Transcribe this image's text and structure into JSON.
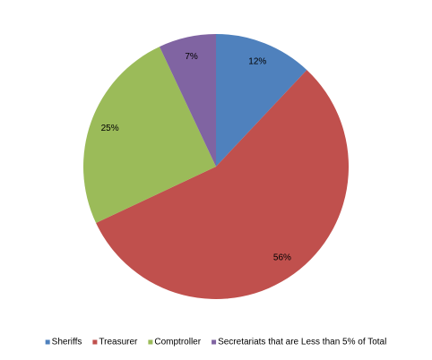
{
  "chart_data": {
    "type": "pie",
    "categories": [
      "Sheriffs",
      "Treasurer",
      "Comptroller",
      "Secretariats that are Less than 5% of Total"
    ],
    "values": [
      12,
      56,
      25,
      7
    ],
    "value_labels": [
      "12%",
      "56%",
      "25%",
      "7%"
    ],
    "colors": [
      "#4f81bd",
      "#c0504d",
      "#9bbb59",
      "#8064a2"
    ],
    "legend": "bottom"
  }
}
